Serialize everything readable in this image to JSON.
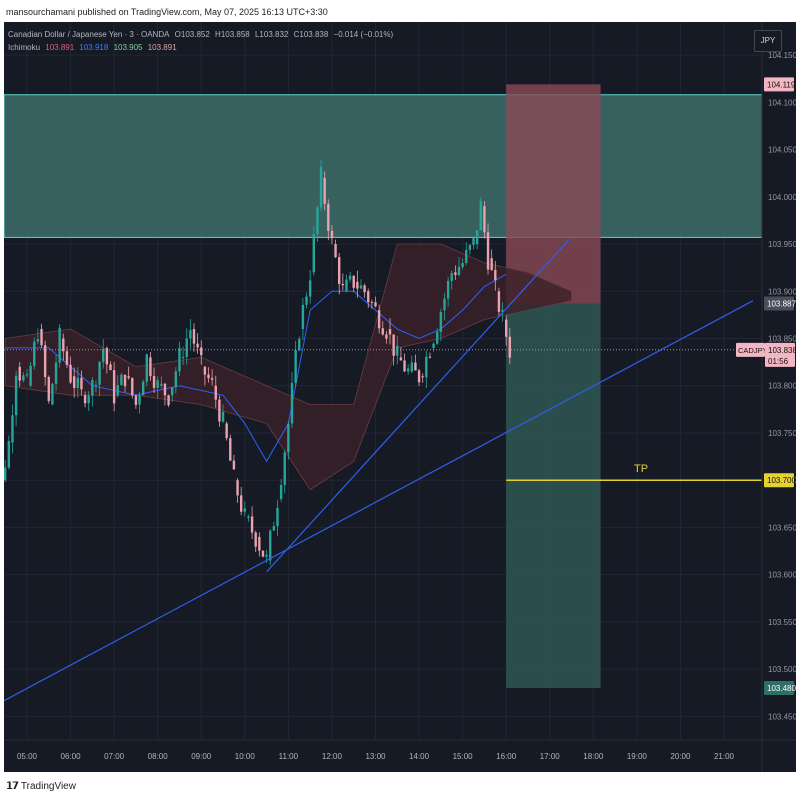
{
  "header": {
    "attribution": "mansourchamani published on TradingView.com, May 07, 2025 16:13 UTC+3:30"
  },
  "legend": {
    "symbol": "Canadian Dollar / Japanese Yen · 3 · OANDA",
    "open": "O103.852",
    "high": "H103.858",
    "low": "L103.832",
    "close": "C103.838",
    "change": "−0.014 (−0.01%)",
    "indicator": "Ichimoku",
    "ichimoku_values": [
      "103.891",
      "103.918",
      "103.905",
      "103.891"
    ]
  },
  "currency_button": "JPY",
  "colors": {
    "background": "#161a25",
    "grid": "#222634",
    "zone": "#3d6e6a",
    "zone_border": "#5fd6c8",
    "stop_box": "#8a4a55",
    "target_box": "#2f5855",
    "trendline": "#2f5fe8",
    "tp_line": "#e6d22e",
    "candle_up": "#26a69a",
    "candle_down": "#e9a2b0",
    "cloud_bull": "#1f3a30",
    "cloud_bear": "#3b2128",
    "kijun": "#2962ff",
    "tenkan": "#c2185b",
    "price_label": "#f4b6c2"
  },
  "footer": {
    "brand": "TradingView"
  },
  "chart_data": {
    "type": "candlestick",
    "symbol": "CADJPY",
    "timeframe": "3",
    "date": "2025-05-07",
    "x_ticks": [
      "05:00",
      "06:00",
      "07:00",
      "08:00",
      "09:00",
      "10:00",
      "11:00",
      "12:00",
      "13:00",
      "14:00",
      "15:00",
      "16:00",
      "17:00",
      "18:00",
      "19:00",
      "20:00",
      "21:00"
    ],
    "y_ticks": [
      "104.150",
      "104.100",
      "104.050",
      "104.000",
      "103.950",
      "103.900",
      "103.850",
      "103.800",
      "103.750",
      "103.700",
      "103.650",
      "103.600",
      "103.550",
      "103.500",
      "103.450"
    ],
    "ylim": [
      103.425,
      104.185
    ],
    "price_labels": [
      {
        "text": "104.119",
        "value": 104.119,
        "style": "stop"
      },
      {
        "text": "103.887",
        "value": 103.887,
        "style": "entry"
      },
      {
        "text": "CADJPY",
        "value": 103.838,
        "style": "last"
      },
      {
        "text": "103.838",
        "value": 103.838,
        "style": "last"
      },
      {
        "text": "01:56",
        "value": 103.838,
        "style": "last"
      },
      {
        "text": "103.700",
        "value": 103.7,
        "style": "tp"
      },
      {
        "text": "103.480",
        "value": 103.48,
        "style": "target"
      }
    ],
    "tp_label": "TP",
    "zone": {
      "top": 104.108,
      "bottom": 103.957
    },
    "position": {
      "entry": 103.887,
      "stop": 104.119,
      "target": 103.48,
      "start_time": "16:00",
      "end_time": "18:10"
    },
    "trendlines": [
      {
        "t1": "10:30",
        "p1": 103.603,
        "t2": "17:27",
        "p2": 103.955
      },
      {
        "t1": "04:00",
        "p1": 103.455,
        "t2": "21:40",
        "p2": 103.89
      }
    ],
    "price_path": [
      [
        "04:03",
        103.87
      ],
      [
        "04:15",
        103.83
      ],
      [
        "04:25",
        103.7
      ],
      [
        "04:35",
        103.74
      ],
      [
        "04:45",
        103.82
      ],
      [
        "05:00",
        103.8
      ],
      [
        "05:15",
        103.86
      ],
      [
        "05:30",
        103.78
      ],
      [
        "05:45",
        103.85
      ],
      [
        "06:00",
        103.81
      ],
      [
        "06:15",
        103.79
      ],
      [
        "06:30",
        103.8
      ],
      [
        "06:45",
        103.84
      ],
      [
        "07:00",
        103.79
      ],
      [
        "07:15",
        103.81
      ],
      [
        "07:30",
        103.78
      ],
      [
        "07:45",
        103.83
      ],
      [
        "08:00",
        103.8
      ],
      [
        "08:15",
        103.79
      ],
      [
        "08:30",
        103.83
      ],
      [
        "08:45",
        103.86
      ],
      [
        "09:00",
        103.82
      ],
      [
        "09:15",
        103.8
      ],
      [
        "09:30",
        103.76
      ],
      [
        "09:45",
        103.7
      ],
      [
        "10:00",
        103.66
      ],
      [
        "10:15",
        103.64
      ],
      [
        "10:30",
        103.615
      ],
      [
        "10:45",
        103.68
      ],
      [
        "11:00",
        103.76
      ],
      [
        "11:15",
        103.86
      ],
      [
        "11:30",
        103.92
      ],
      [
        "11:45",
        104.02
      ],
      [
        "12:00",
        103.95
      ],
      [
        "12:15",
        103.9
      ],
      [
        "12:30",
        103.91
      ],
      [
        "12:45",
        103.9
      ],
      [
        "13:00",
        103.88
      ],
      [
        "13:15",
        103.86
      ],
      [
        "13:30",
        103.83
      ],
      [
        "13:45",
        103.815
      ],
      [
        "14:00",
        103.81
      ],
      [
        "14:15",
        103.84
      ],
      [
        "14:30",
        103.88
      ],
      [
        "14:45",
        103.92
      ],
      [
        "15:00",
        103.93
      ],
      [
        "15:15",
        103.95
      ],
      [
        "15:25",
        103.99
      ],
      [
        "15:35",
        103.935
      ],
      [
        "15:45",
        103.9
      ],
      [
        "15:55",
        103.87
      ],
      [
        "16:05",
        103.838
      ]
    ],
    "ichimoku": {
      "kijun": [
        [
          "04:30",
          103.84
        ],
        [
          "05:30",
          103.84
        ],
        [
          "06:30",
          103.8
        ],
        [
          "07:30",
          103.79
        ],
        [
          "08:30",
          103.8
        ],
        [
          "09:30",
          103.79
        ],
        [
          "10:00",
          103.76
        ],
        [
          "10:30",
          103.72
        ],
        [
          "11:00",
          103.76
        ],
        [
          "11:30",
          103.88
        ],
        [
          "12:00",
          103.9
        ],
        [
          "12:30",
          103.9
        ],
        [
          "13:00",
          103.88
        ],
        [
          "13:30",
          103.86
        ],
        [
          "14:00",
          103.85
        ],
        [
          "14:30",
          103.86
        ],
        [
          "15:00",
          103.88
        ],
        [
          "15:30",
          103.905
        ],
        [
          "16:00",
          103.918
        ]
      ],
      "cloud_upper": [
        [
          "04:30",
          103.85
        ],
        [
          "06:00",
          103.86
        ],
        [
          "07:30",
          103.82
        ],
        [
          "09:00",
          103.83
        ],
        [
          "10:30",
          103.8
        ],
        [
          "11:30",
          103.78
        ],
        [
          "12:30",
          103.78
        ],
        [
          "13:30",
          103.95
        ],
        [
          "14:30",
          103.95
        ],
        [
          "15:30",
          103.93
        ],
        [
          "16:30",
          103.92
        ],
        [
          "17:30",
          103.9
        ]
      ],
      "cloud_lower": [
        [
          "04:30",
          103.8
        ],
        [
          "06:00",
          103.79
        ],
        [
          "07:30",
          103.79
        ],
        [
          "09:00",
          103.78
        ],
        [
          "10:30",
          103.76
        ],
        [
          "11:30",
          103.69
        ],
        [
          "12:30",
          103.72
        ],
        [
          "13:30",
          103.84
        ],
        [
          "14:30",
          103.85
        ],
        [
          "15:30",
          103.87
        ],
        [
          "16:30",
          103.88
        ],
        [
          "17:30",
          103.89
        ]
      ]
    }
  }
}
